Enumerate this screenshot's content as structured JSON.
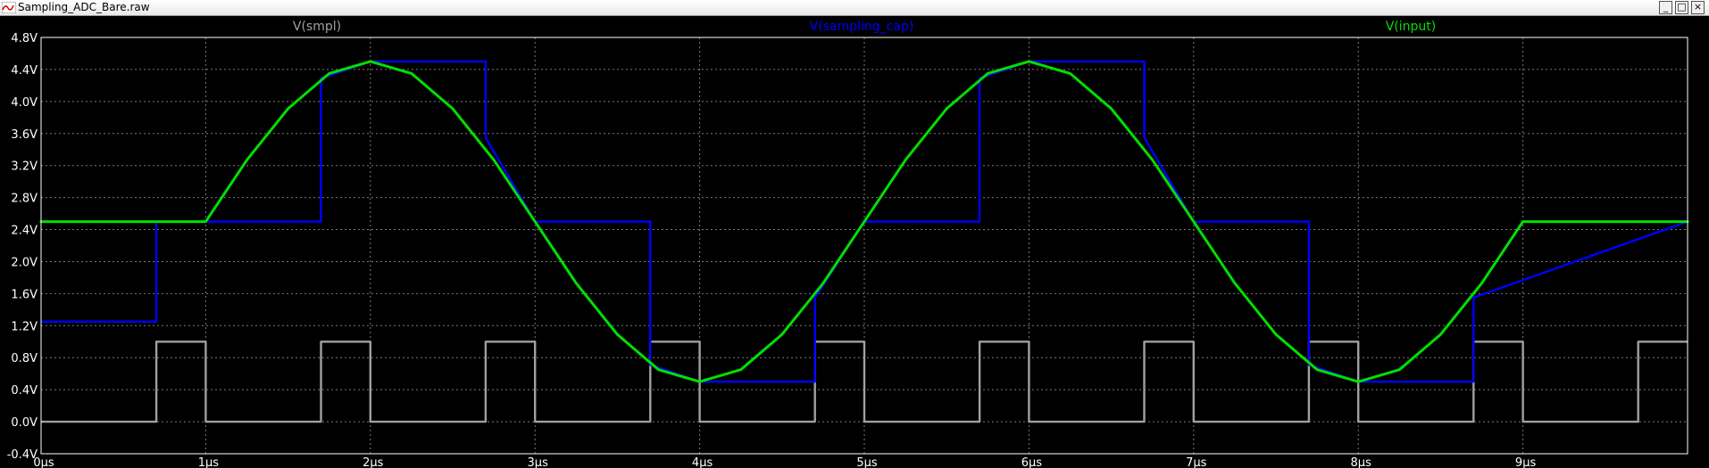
{
  "window": {
    "title": "Sampling_ADC_Bare.raw",
    "buttons": {
      "minimize": "_",
      "maximize": "□",
      "close": "×"
    }
  },
  "colors": {
    "background": "#000000",
    "grid": "#7a7a7a",
    "axis_text": "#ffffff",
    "border": "#ffffff"
  },
  "chart_data": {
    "type": "line",
    "title": "",
    "xlabel": "",
    "ylabel": "",
    "xlim": [
      0,
      10
    ],
    "ylim": [
      -0.4,
      4.8
    ],
    "x_unit": "µs",
    "grid": true,
    "x_ticks": [
      0,
      1,
      2,
      3,
      4,
      5,
      6,
      7,
      8,
      9
    ],
    "x_tick_labels": [
      "0µs",
      "1µs",
      "2µs",
      "3µs",
      "4µs",
      "5µs",
      "6µs",
      "7µs",
      "8µs",
      "9µs"
    ],
    "y_ticks": [
      -0.4,
      0.0,
      0.4,
      0.8,
      1.2,
      1.6,
      2.0,
      2.4,
      2.8,
      3.2,
      3.6,
      4.0,
      4.4,
      4.8
    ],
    "y_tick_labels": [
      "-0.4V",
      "0.0V",
      "0.4V",
      "0.8V",
      "1.2V",
      "1.6V",
      "2.0V",
      "2.4V",
      "2.8V",
      "3.2V",
      "3.6V",
      "4.0V",
      "4.4V",
      "4.8V"
    ],
    "series": [
      {
        "name": "V(smpl)",
        "color": "#a0a0a0",
        "x": [
          0,
          0.7,
          0.7,
          1.0,
          1.0,
          1.7,
          1.7,
          2.0,
          2.0,
          2.7,
          2.7,
          3.0,
          3.0,
          3.7,
          3.7,
          4.0,
          4.0,
          4.7,
          4.7,
          5.0,
          5.0,
          5.7,
          5.7,
          6.0,
          6.0,
          6.7,
          6.7,
          7.0,
          7.0,
          7.7,
          7.7,
          8.0,
          8.0,
          8.7,
          8.7,
          9.0,
          9.0,
          9.7,
          9.7,
          10.0
        ],
        "y": [
          0,
          0,
          1,
          1,
          0,
          0,
          1,
          1,
          0,
          0,
          1,
          1,
          0,
          0,
          1,
          1,
          0,
          0,
          1,
          1,
          0,
          0,
          1,
          1,
          0,
          0,
          1,
          1,
          0,
          0,
          1,
          1,
          0,
          0,
          1,
          1,
          0,
          0,
          1,
          1
        ]
      },
      {
        "name": "V(sampling_cap)",
        "color": "#0000ff",
        "x": [
          0,
          0.7,
          0.7,
          1.0,
          1.7,
          1.7,
          2.0,
          2.7,
          2.7,
          3.0,
          3.7,
          3.7,
          4.0,
          4.7,
          4.7,
          5.0,
          5.7,
          5.7,
          6.0,
          6.7,
          6.7,
          7.0,
          7.7,
          7.7,
          8.0,
          8.7,
          8.7,
          10.0
        ],
        "y": [
          1.25,
          1.25,
          2.5,
          2.5,
          2.5,
          4.29,
          4.5,
          4.5,
          3.55,
          2.5,
          2.5,
          0.71,
          0.5,
          0.5,
          1.55,
          2.5,
          2.5,
          4.29,
          4.5,
          4.5,
          3.55,
          2.5,
          2.5,
          0.71,
          0.5,
          0.5,
          1.55,
          2.5
        ]
      },
      {
        "name": "V(input)",
        "color": "#00e000",
        "x": [
          0,
          1.0,
          1.25,
          1.5,
          1.75,
          2.0,
          2.25,
          2.5,
          2.75,
          3.0,
          3.25,
          3.5,
          3.75,
          4.0,
          4.25,
          4.5,
          4.75,
          5.0,
          5.25,
          5.5,
          5.75,
          6.0,
          6.25,
          6.5,
          6.75,
          7.0,
          7.25,
          7.5,
          7.75,
          8.0,
          8.25,
          8.5,
          8.75,
          9.0,
          10.0
        ],
        "y": [
          2.5,
          2.5,
          3.27,
          3.91,
          4.35,
          4.5,
          4.35,
          3.91,
          3.27,
          2.5,
          1.73,
          1.09,
          0.65,
          0.5,
          0.65,
          1.09,
          1.73,
          2.5,
          3.27,
          3.91,
          4.35,
          4.5,
          4.35,
          3.91,
          3.27,
          2.5,
          1.73,
          1.09,
          0.65,
          0.5,
          0.65,
          1.09,
          1.73,
          2.5,
          2.5
        ]
      }
    ]
  }
}
